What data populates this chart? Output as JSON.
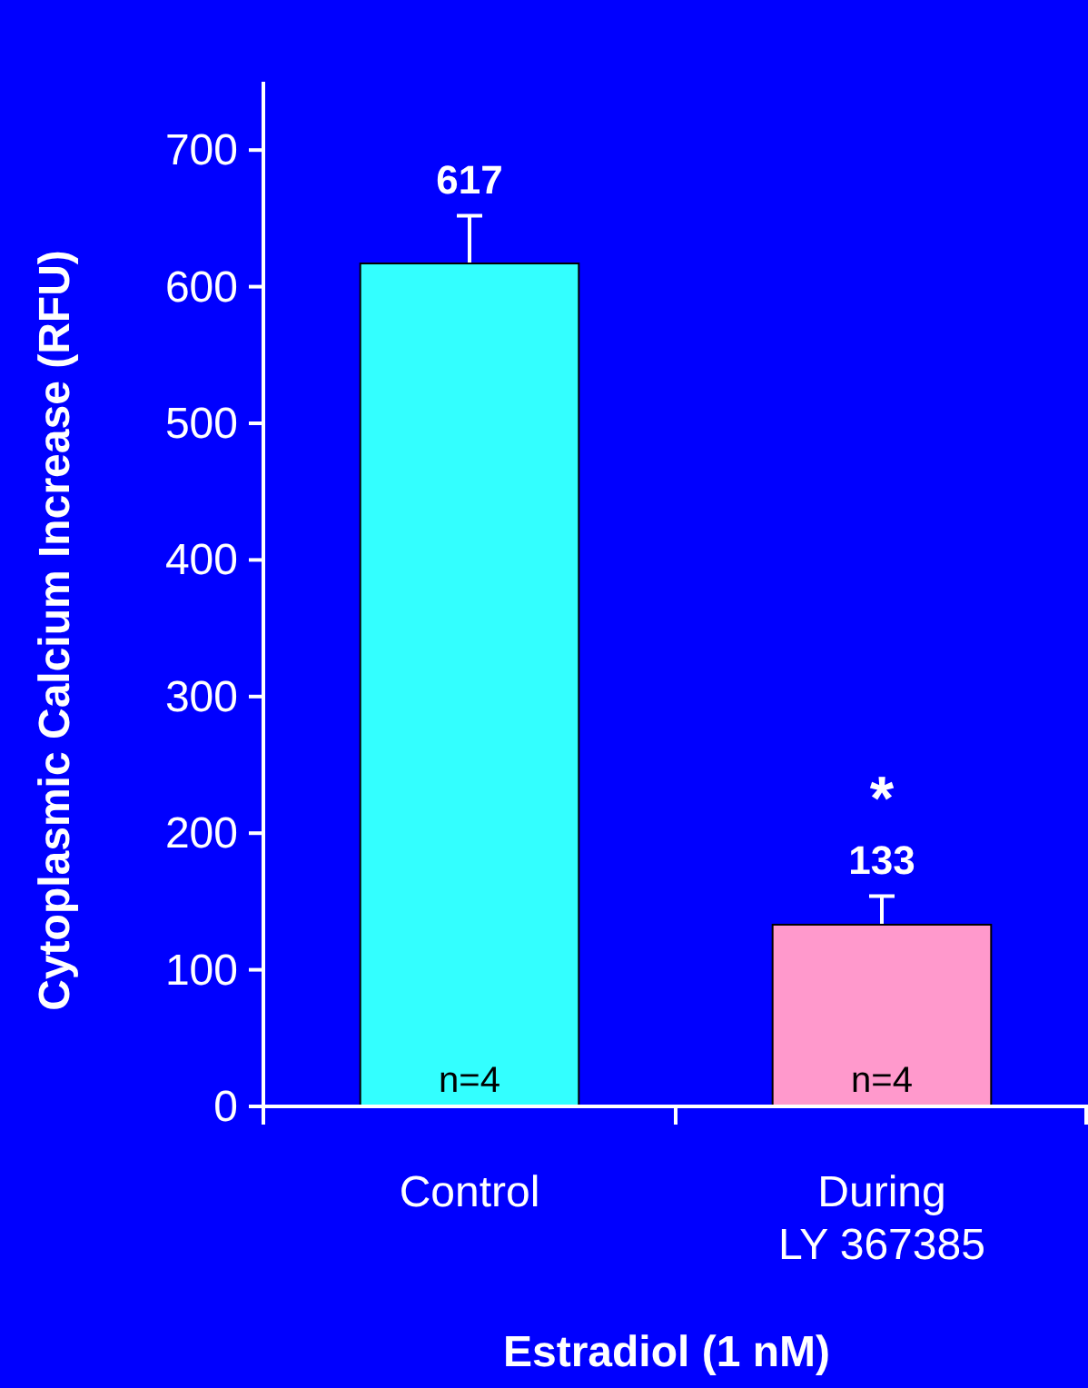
{
  "chart_data": {
    "type": "bar",
    "xlabel": "Estradiol (1 nM)",
    "ylabel": "Cytoplasmic Calcium Increase (RFU)",
    "categories": [
      "Control",
      "During\nLY 367385"
    ],
    "values": [
      617,
      133
    ],
    "colors": [
      "#33ffff",
      "#ff99cc"
    ],
    "errors": [
      35,
      21
    ],
    "data_labels": true,
    "ylim": [
      0,
      750
    ],
    "yticks": [
      0,
      100,
      200,
      300,
      400,
      500,
      600,
      700
    ],
    "annotations": [
      {
        "text": "n=4",
        "x": "Control",
        "y": 0
      },
      {
        "text": "n=4",
        "x": "During\nLY 367385",
        "y": 0
      },
      "*"
    ]
  }
}
